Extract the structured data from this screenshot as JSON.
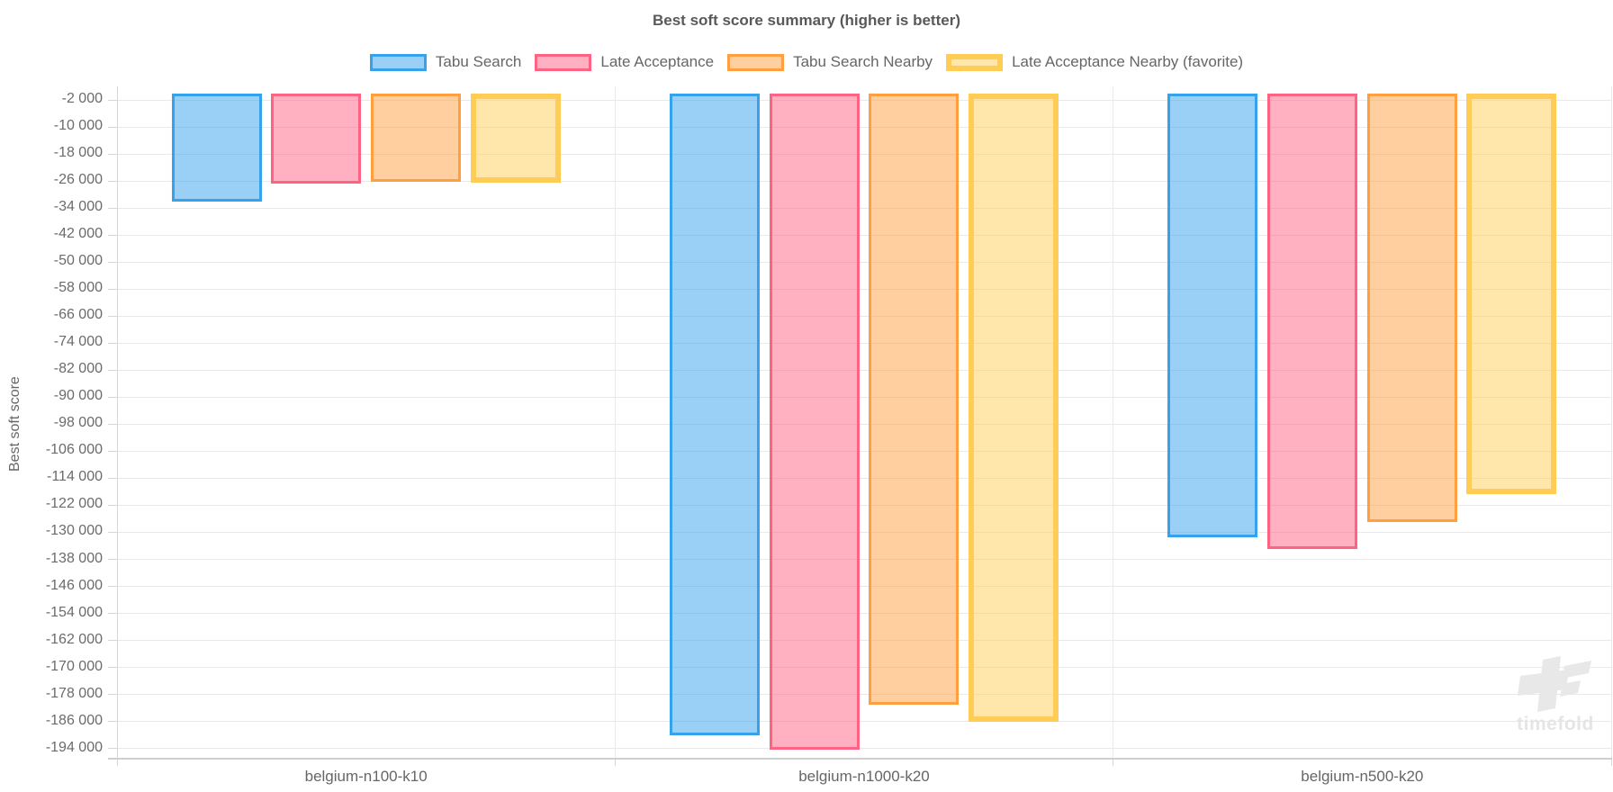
{
  "chart_data": {
    "type": "bar",
    "title": "Best soft score summary (higher is better)",
    "ylabel": "Best soft score",
    "xlabel": "",
    "grid": true,
    "legend_position": "top",
    "ylim": [
      2000,
      -197000
    ],
    "categories": [
      "belgium-n100-k10",
      "belgium-n1000-k20",
      "belgium-n500-k20"
    ],
    "series": [
      {
        "name": "Tabu Search",
        "border_color": "#36A2EB",
        "fill_color": "rgba(54,162,235,0.5)",
        "border_width": 3,
        "favorite": false,
        "values": [
          -32200,
          -190000,
          -131400
        ]
      },
      {
        "name": "Late Acceptance",
        "border_color": "#FF6384",
        "fill_color": "rgba(255,99,132,0.5)",
        "border_width": 3,
        "favorite": false,
        "values": [
          -26900,
          -194400,
          -134900
        ]
      },
      {
        "name": "Tabu Search Nearby",
        "border_color": "#FF9F40",
        "fill_color": "rgba(255,159,64,0.5)",
        "border_width": 3,
        "favorite": false,
        "values": [
          -26200,
          -181000,
          -127000
        ]
      },
      {
        "name": "Late Acceptance Nearby (favorite)",
        "border_color": "#FFCD56",
        "fill_color": "rgba(255,205,86,0.5)",
        "border_width": 6,
        "favorite": true,
        "values": [
          -26400,
          -186200,
          -118800
        ]
      }
    ],
    "y_ticks": [
      {
        "value": -2000,
        "label": "-2 000"
      },
      {
        "value": -10000,
        "label": "-10 000"
      },
      {
        "value": -18000,
        "label": "-18 000"
      },
      {
        "value": -26000,
        "label": "-26 000"
      },
      {
        "value": -34000,
        "label": "-34 000"
      },
      {
        "value": -42000,
        "label": "-42 000"
      },
      {
        "value": -50000,
        "label": "-50 000"
      },
      {
        "value": -58000,
        "label": "-58 000"
      },
      {
        "value": -66000,
        "label": "-66 000"
      },
      {
        "value": -74000,
        "label": "-74 000"
      },
      {
        "value": -82000,
        "label": "-82 000"
      },
      {
        "value": -90000,
        "label": "-90 000"
      },
      {
        "value": -98000,
        "label": "-98 000"
      },
      {
        "value": -106000,
        "label": "-106 000"
      },
      {
        "value": -114000,
        "label": "-114 000"
      },
      {
        "value": -122000,
        "label": "-122 000"
      },
      {
        "value": -130000,
        "label": "-130 000"
      },
      {
        "value": -138000,
        "label": "-138 000"
      },
      {
        "value": -146000,
        "label": "-146 000"
      },
      {
        "value": -154000,
        "label": "-154 000"
      },
      {
        "value": -162000,
        "label": "-162 000"
      },
      {
        "value": -170000,
        "label": "-170 000"
      },
      {
        "value": -178000,
        "label": "-178 000"
      },
      {
        "value": -186000,
        "label": "-186 000"
      },
      {
        "value": -194000,
        "label": "-194 000"
      }
    ],
    "style": {
      "grid_color": "#e9e9e9",
      "axis_color": "#cfcfcf",
      "tick_color": "#d6d6d6",
      "text_color": "#666666",
      "title_color": "#595959"
    }
  },
  "watermark": {
    "text": "timefold",
    "color": "#e8e8e8"
  }
}
